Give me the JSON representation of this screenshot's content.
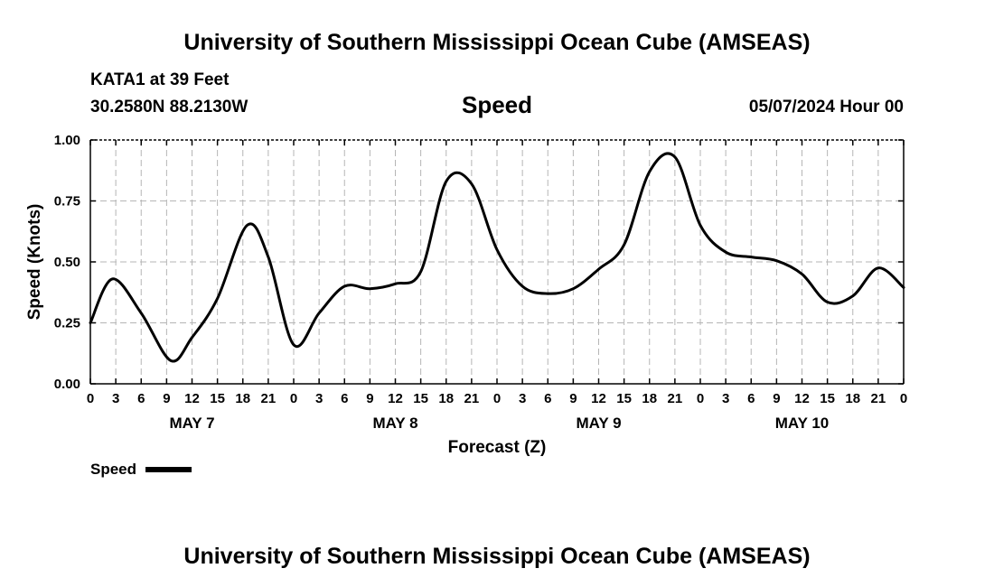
{
  "header": {
    "title_top": "University of Southern Mississippi Ocean Cube (AMSEAS)",
    "title_bottom": "University of Southern Mississippi Ocean Cube (AMSEAS)",
    "station": "KATA1 at 39 Feet",
    "coords": "30.2580N  88.2130W",
    "datetime": "05/07/2024 Hour 00"
  },
  "chart_data": {
    "type": "line",
    "title": "Speed",
    "xlabel": "Forecast (Z)",
    "ylabel": "Speed (Knots)",
    "ylim": [
      0,
      1
    ],
    "yticks": [
      "0.00",
      "0.25",
      "0.50",
      "0.75",
      "1.00"
    ],
    "xlim": [
      0,
      96
    ],
    "xtick_hours": [
      0,
      3,
      6,
      9,
      12,
      15,
      18,
      21,
      24,
      27,
      30,
      33,
      36,
      39,
      42,
      45,
      48,
      51,
      54,
      57,
      60,
      63,
      66,
      69,
      72,
      75,
      78,
      81,
      84,
      87,
      90,
      93,
      96
    ],
    "xtick_labels": [
      "0",
      "3",
      "6",
      "9",
      "12",
      "15",
      "18",
      "21",
      "0",
      "3",
      "6",
      "9",
      "12",
      "15",
      "18",
      "21",
      "0",
      "3",
      "6",
      "9",
      "12",
      "15",
      "18",
      "21",
      "0",
      "3",
      "6",
      "9",
      "12",
      "15",
      "18",
      "21",
      "0"
    ],
    "day_labels": [
      {
        "hour": 12,
        "label": "MAY 7"
      },
      {
        "hour": 36,
        "label": "MAY 8"
      },
      {
        "hour": 60,
        "label": "MAY 9"
      },
      {
        "hour": 84,
        "label": "MAY 10"
      }
    ],
    "grid": true,
    "legend_position": "bottom-left",
    "series": [
      {
        "name": "Speed",
        "color": "#000000",
        "x": [
          0,
          2.6,
          6,
          9.5,
          12,
          15,
          18.5,
          21,
          24,
          27,
          30,
          33,
          36,
          39,
          42,
          45,
          48,
          51,
          54,
          57,
          60,
          63,
          66,
          69,
          72,
          75,
          78,
          81,
          84,
          87,
          90,
          93,
          96
        ],
        "y": [
          0.25,
          0.43,
          0.29,
          0.095,
          0.19,
          0.35,
          0.65,
          0.52,
          0.16,
          0.29,
          0.4,
          0.39,
          0.41,
          0.46,
          0.83,
          0.82,
          0.55,
          0.4,
          0.37,
          0.39,
          0.47,
          0.57,
          0.87,
          0.93,
          0.65,
          0.54,
          0.52,
          0.505,
          0.45,
          0.335,
          0.36,
          0.475,
          0.395
        ]
      }
    ]
  }
}
